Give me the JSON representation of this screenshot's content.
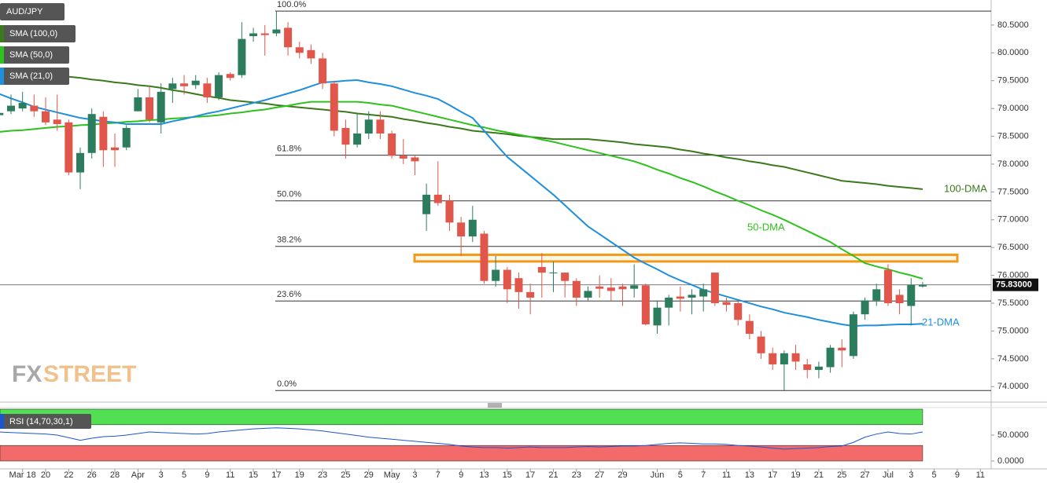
{
  "chart_data": {
    "type": "candlestick",
    "title": "AUD/JPY",
    "categories": [
      null,
      null,
      "Mar 18",
      null,
      "20",
      null,
      "22",
      null,
      "26",
      null,
      "28",
      null,
      "Apr",
      null,
      "3",
      null,
      "5",
      null,
      "9",
      null,
      "11",
      null,
      "15",
      null,
      "17",
      null,
      "19",
      null,
      "23",
      null,
      "25",
      null,
      "29",
      null,
      "May",
      null,
      "3",
      null,
      "7",
      null,
      "9",
      null,
      "13",
      null,
      "15",
      null,
      "17",
      null,
      "21",
      null,
      "23",
      null,
      "27",
      null,
      "29",
      null,
      null,
      "Jun",
      null,
      "5",
      null,
      "7",
      null,
      "11",
      null,
      "13",
      null,
      "17",
      null,
      "19",
      null,
      "21",
      null,
      "25",
      null,
      "27",
      null,
      "Jul",
      null,
      "3",
      null,
      "5",
      null,
      "9",
      null,
      "11"
    ],
    "ohlc": {
      "open": [
        78.88,
        78.95,
        79.0,
        79.05,
        78.95,
        78.8,
        78.75,
        77.85,
        78.2,
        78.85,
        78.3,
        78.3,
        78.95,
        79.2,
        78.75,
        79.35,
        79.45,
        79.42,
        79.45,
        79.2,
        79.62,
        79.6,
        80.3,
        80.35,
        80.35,
        80.45,
        80.1,
        80.05,
        79.9,
        79.45,
        78.65,
        78.35,
        78.55,
        78.8,
        78.55,
        78.15,
        78.12,
        77.1,
        77.45,
        77.35,
        76.95,
        76.7,
        76.75,
        75.9,
        76.1,
        75.95,
        75.7,
        76.15,
        76.05,
        76.05,
        75.9,
        75.6,
        75.8,
        75.78,
        75.8,
        75.76,
        75.82,
        75.1,
        75.42,
        75.62,
        75.6,
        75.62,
        76.05,
        75.52,
        75.5,
        75.18,
        74.9,
        74.6,
        74.4,
        74.6,
        74.4,
        74.3,
        74.35,
        74.7,
        74.55,
        75.3,
        75.55,
        76.1,
        75.65,
        75.45,
        75.8,
        null,
        null,
        null,
        null,
        null
      ],
      "high": [
        79.0,
        79.25,
        79.3,
        79.25,
        79.2,
        79.25,
        78.8,
        78.3,
        79.0,
        78.95,
        78.55,
        78.7,
        79.35,
        79.4,
        79.45,
        79.55,
        79.6,
        79.6,
        79.55,
        79.65,
        79.65,
        80.55,
        80.45,
        80.5,
        80.75,
        80.55,
        80.2,
        80.15,
        80.0,
        79.5,
        78.8,
        78.9,
        78.95,
        78.95,
        78.6,
        78.45,
        78.15,
        77.65,
        78.05,
        77.45,
        77.05,
        77.25,
        76.8,
        76.35,
        76.15,
        76.05,
        75.85,
        76.4,
        76.25,
        76.05,
        75.95,
        75.8,
        76.0,
        75.95,
        75.85,
        76.2,
        75.85,
        75.55,
        75.65,
        75.8,
        75.75,
        75.85,
        76.05,
        75.6,
        75.55,
        75.3,
        75.0,
        74.7,
        74.65,
        74.75,
        74.5,
        74.45,
        74.75,
        74.85,
        75.35,
        75.6,
        75.85,
        76.2,
        75.75,
        75.95,
        75.88,
        null,
        null,
        null,
        null,
        null
      ],
      "low": [
        78.8,
        78.9,
        78.95,
        78.85,
        78.7,
        78.6,
        77.8,
        77.55,
        78.1,
        77.95,
        77.95,
        78.25,
        78.95,
        78.75,
        78.55,
        79.1,
        79.25,
        79.35,
        79.1,
        79.15,
        79.5,
        79.55,
        80.2,
        79.95,
        80.3,
        79.95,
        79.9,
        79.8,
        79.35,
        78.5,
        78.1,
        78.3,
        78.45,
        78.45,
        78.1,
        78.0,
        77.8,
        76.8,
        77.25,
        76.8,
        76.35,
        76.6,
        75.85,
        75.8,
        75.5,
        75.4,
        75.3,
        75.6,
        75.7,
        75.6,
        75.45,
        75.55,
        75.6,
        75.55,
        75.45,
        75.6,
        75.1,
        74.95,
        75.1,
        75.35,
        75.3,
        75.35,
        75.45,
        75.35,
        75.1,
        74.85,
        74.5,
        74.3,
        73.92,
        74.3,
        74.15,
        74.15,
        74.25,
        74.35,
        74.5,
        75.2,
        75.45,
        75.45,
        75.3,
        75.1,
        75.78,
        null,
        null,
        null,
        null,
        null
      ],
      "close": [
        78.92,
        79.05,
        79.1,
        78.95,
        78.75,
        78.72,
        77.85,
        78.2,
        78.9,
        78.25,
        78.25,
        78.65,
        79.2,
        78.8,
        79.3,
        79.45,
        79.4,
        79.5,
        79.2,
        79.6,
        79.55,
        80.25,
        80.35,
        80.32,
        80.42,
        80.1,
        80.0,
        79.9,
        79.45,
        78.6,
        78.35,
        78.55,
        78.8,
        78.55,
        78.15,
        78.1,
        78.05,
        77.45,
        77.3,
        76.95,
        76.7,
        77.0,
        75.9,
        76.1,
        75.75,
        75.7,
        75.6,
        76.05,
        76.05,
        75.9,
        75.6,
        75.72,
        75.76,
        75.72,
        75.75,
        75.82,
        75.12,
        75.42,
        75.6,
        75.58,
        75.65,
        75.75,
        75.5,
        75.47,
        75.2,
        74.95,
        74.6,
        74.4,
        74.6,
        74.45,
        74.3,
        74.36,
        74.7,
        74.65,
        75.3,
        75.55,
        75.75,
        75.5,
        75.5,
        75.83,
        75.83,
        null,
        null,
        null,
        null,
        null
      ]
    },
    "up_color": "#2b7d5e",
    "down_color": "#e0564a",
    "ylim": [
      73.75,
      80.95
    ],
    "yticks": [
      {
        "value": 80.5,
        "label": "80.5000"
      },
      {
        "value": 80.0,
        "label": "80.0000"
      },
      {
        "value": 79.5,
        "label": "79.5000"
      },
      {
        "value": 79.0,
        "label": "79.0000"
      },
      {
        "value": 78.5,
        "label": "78.5000"
      },
      {
        "value": 78.0,
        "label": "78.0000"
      },
      {
        "value": 77.5,
        "label": "77.5000"
      },
      {
        "value": 77.0,
        "label": "77.0000"
      },
      {
        "value": 76.5,
        "label": "76.5000"
      },
      {
        "value": 76.0,
        "label": "76.0000"
      },
      {
        "value": 75.5,
        "label": "75.5000"
      },
      {
        "value": 75.0,
        "label": "75.0000"
      },
      {
        "value": 74.5,
        "label": "74.5000"
      },
      {
        "value": 74.0,
        "label": "74.0000"
      }
    ],
    "grid": false,
    "series": [
      {
        "name": "SMA (100,0)",
        "annotation": "100-DMA",
        "color": "#3a7a1c",
        "values": [
          79.7,
          79.68,
          79.66,
          79.64,
          79.61,
          79.59,
          79.57,
          79.55,
          79.52,
          79.5,
          79.47,
          79.45,
          79.42,
          79.4,
          79.37,
          79.33,
          79.3,
          79.26,
          79.22,
          79.19,
          79.15,
          79.13,
          79.11,
          79.09,
          79.06,
          79.04,
          79.02,
          79.0,
          78.98,
          78.96,
          78.94,
          78.91,
          78.89,
          78.87,
          78.85,
          78.81,
          78.78,
          78.74,
          78.71,
          78.67,
          78.64,
          78.6,
          78.58,
          78.56,
          78.54,
          78.51,
          78.49,
          78.47,
          78.45,
          78.45,
          78.45,
          78.45,
          78.43,
          78.41,
          78.39,
          78.36,
          78.34,
          78.32,
          78.3,
          78.26,
          78.23,
          78.19,
          78.16,
          78.12,
          78.09,
          78.05,
          78.02,
          77.98,
          77.95,
          77.9,
          77.85,
          77.8,
          77.75,
          77.7,
          77.68,
          77.66,
          77.64,
          77.61,
          77.59,
          77.57,
          77.55,
          null,
          null,
          null,
          null,
          null
        ]
      },
      {
        "name": "SMA (50,0)",
        "annotation": "50-DMA",
        "color": "#2ec21c",
        "values": [
          78.58,
          78.6,
          78.61,
          78.63,
          78.65,
          78.67,
          78.68,
          78.7,
          78.71,
          78.73,
          78.74,
          78.76,
          78.77,
          78.79,
          78.8,
          78.82,
          78.83,
          78.85,
          78.86,
          78.88,
          78.91,
          78.93,
          78.96,
          78.98,
          79.02,
          79.05,
          79.09,
          79.12,
          79.12,
          79.12,
          79.12,
          79.12,
          79.1,
          79.07,
          79.05,
          79.0,
          78.95,
          78.9,
          78.85,
          78.8,
          78.75,
          78.7,
          78.66,
          78.61,
          78.57,
          78.53,
          78.49,
          78.44,
          78.4,
          78.35,
          78.3,
          78.25,
          78.2,
          78.15,
          78.1,
          78.05,
          77.98,
          77.9,
          77.83,
          77.75,
          77.68,
          77.6,
          77.51,
          77.43,
          77.34,
          77.26,
          77.17,
          77.09,
          77.0,
          76.9,
          76.8,
          76.7,
          76.6,
          76.47,
          76.35,
          76.22,
          76.16,
          76.11,
          76.05,
          76.0,
          75.94,
          null,
          null,
          null,
          null,
          null
        ]
      },
      {
        "name": "SMA (21,0)",
        "annotation": "21-DMA",
        "color": "#1e8fdc",
        "values": [
          79.26,
          79.18,
          79.11,
          79.03,
          78.98,
          78.93,
          78.88,
          78.83,
          78.8,
          78.77,
          78.75,
          78.72,
          78.72,
          78.72,
          78.72,
          78.77,
          78.81,
          78.86,
          78.91,
          78.95,
          79.0,
          79.05,
          79.1,
          79.15,
          79.21,
          79.27,
          79.33,
          79.4,
          79.47,
          79.48,
          79.5,
          79.51,
          79.47,
          79.44,
          79.4,
          79.34,
          79.28,
          79.23,
          79.17,
          79.06,
          78.94,
          78.83,
          78.6,
          78.36,
          78.13,
          77.96,
          77.79,
          77.62,
          77.45,
          77.26,
          77.07,
          76.88,
          76.74,
          76.6,
          76.46,
          76.32,
          76.21,
          76.11,
          76.0,
          75.91,
          75.83,
          75.74,
          75.68,
          75.62,
          75.56,
          75.5,
          75.44,
          75.39,
          75.33,
          75.29,
          75.25,
          75.2,
          75.16,
          75.12,
          75.09,
          75.1,
          75.1,
          75.11,
          75.12,
          75.12,
          75.13,
          null,
          null,
          null,
          null,
          null
        ]
      }
    ],
    "fib_levels": [
      {
        "label": "100.0%",
        "value": 80.75
      },
      {
        "label": "61.8%",
        "value": 78.16
      },
      {
        "label": "50.0%",
        "value": 77.34
      },
      {
        "label": "38.2%",
        "value": 76.52
      },
      {
        "label": "23.6%",
        "value": 75.54
      },
      {
        "label": "0.0%",
        "value": 73.93
      }
    ],
    "last_price": {
      "value": 75.83,
      "label": "75.83000"
    },
    "resistance_zone": {
      "low": 76.25,
      "high": 76.37,
      "color": "#f29a16"
    },
    "watermark": [
      "FX",
      "STREET"
    ],
    "rsi": {
      "name": "RSI (14,70,30,1)",
      "color": "#1d55d0",
      "ylim": [
        0,
        100
      ],
      "yticks": [
        {
          "value": 50,
          "label": "50.0000"
        },
        {
          "value": 0,
          "label": "0.0000"
        }
      ],
      "overbought": 70,
      "oversold": 30,
      "overbought_color": "#52e052",
      "oversold_color": "#f26a6a",
      "values": [
        56,
        55,
        54,
        53,
        52,
        50,
        45,
        40,
        44,
        47,
        48,
        50,
        53,
        56,
        55,
        54,
        53,
        52,
        53,
        56,
        58,
        60,
        62,
        63,
        64,
        63,
        62,
        60,
        58,
        55,
        52,
        49,
        46,
        44,
        42,
        40,
        38,
        36,
        34,
        32,
        29,
        27,
        26,
        26,
        25,
        26,
        27,
        26,
        26,
        26,
        27,
        28,
        27,
        28,
        29,
        29,
        30,
        32,
        34,
        35,
        34,
        33,
        33,
        32,
        30,
        29,
        27,
        25,
        23,
        24,
        25,
        26,
        28,
        29,
        36,
        46,
        52,
        56,
        53,
        52,
        56,
        null,
        null,
        null,
        null,
        null
      ]
    }
  }
}
